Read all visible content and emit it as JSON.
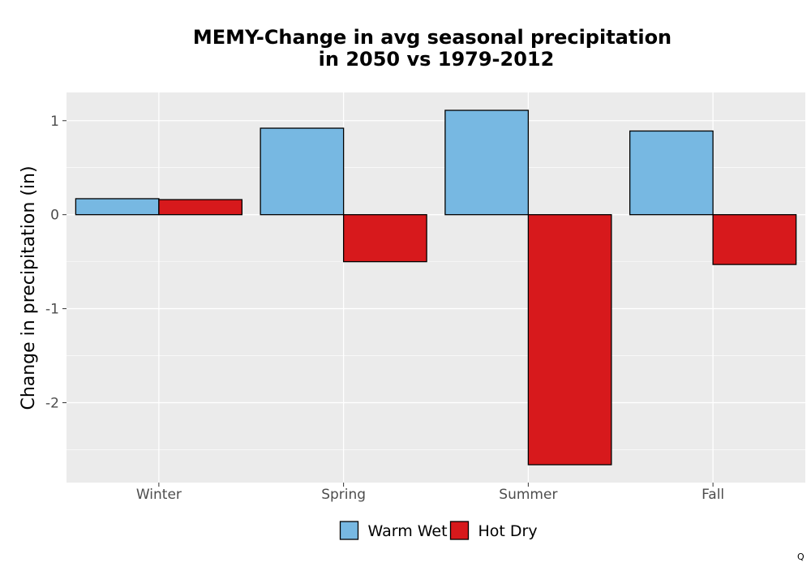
{
  "chart_data": {
    "type": "bar",
    "title_lines": [
      "MEMY-Change in avg seasonal precipitation",
      "in 2050 vs 1979-2012"
    ],
    "xlabel": "",
    "ylabel": "Change in precipitation (in)",
    "categories": [
      "Winter",
      "Spring",
      "Summer",
      "Fall"
    ],
    "series": [
      {
        "name": "Warm Wet",
        "color": "#77b8e2",
        "values": [
          0.17,
          0.92,
          1.11,
          0.89
        ]
      },
      {
        "name": "Hot Dry",
        "color": "#d7191c",
        "values": [
          0.16,
          -0.5,
          -2.66,
          -0.53
        ]
      }
    ],
    "ylim": [
      -2.85,
      1.3
    ],
    "yticks": [
      1,
      0,
      -1,
      -2
    ],
    "ytick_labels": [
      "1",
      "0",
      "-1",
      "-2"
    ],
    "grid": true,
    "panel_background": "#ebebeb",
    "legend_position": "bottom",
    "corner_mark": "Q"
  }
}
